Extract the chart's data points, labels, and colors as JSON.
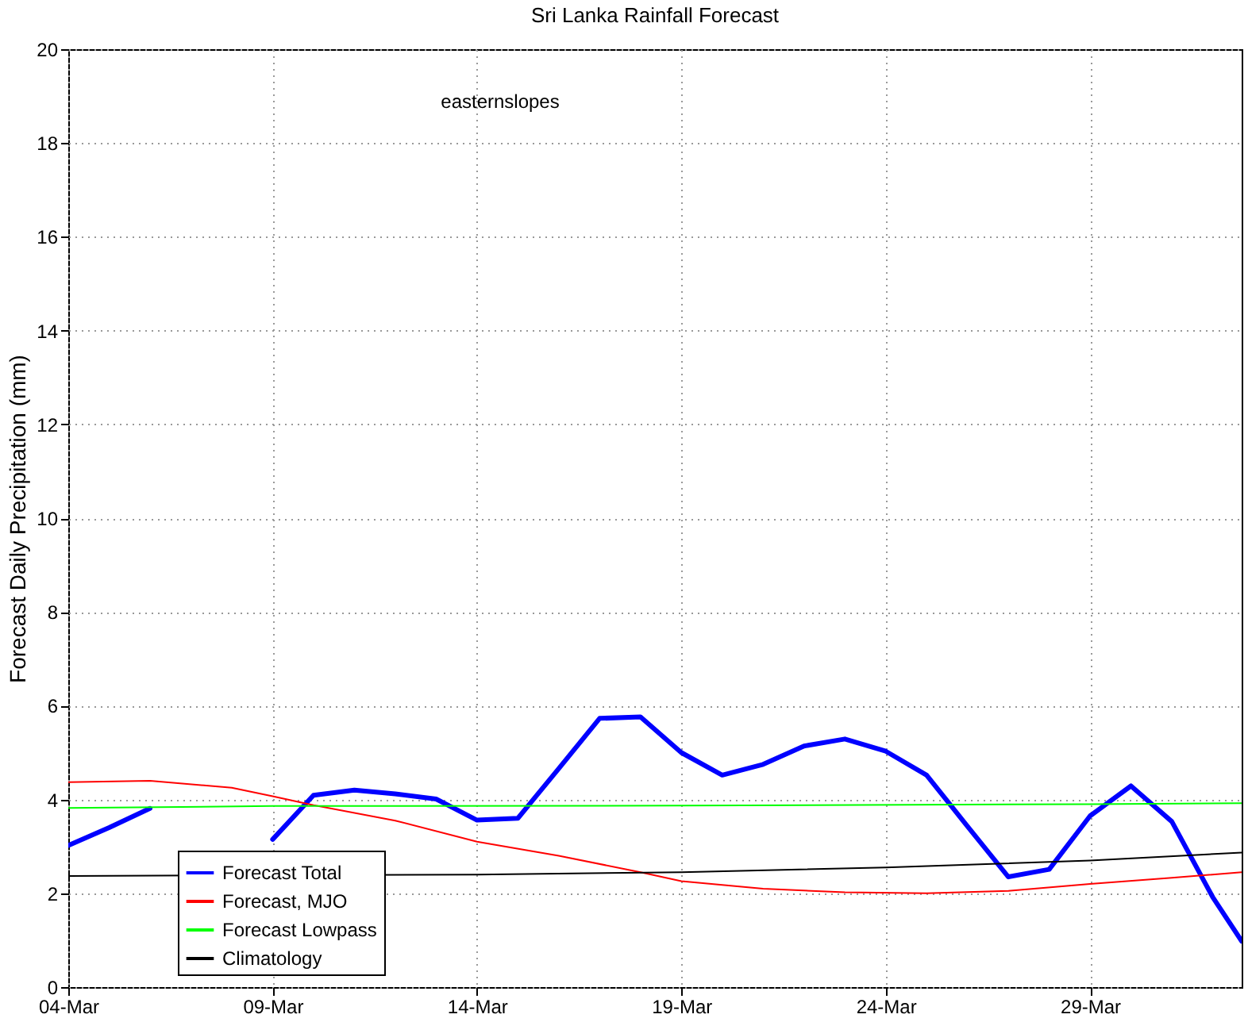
{
  "chart_data": {
    "type": "line",
    "title": "Sri Lanka Rainfall Forecast",
    "ylabel": "Forecast Daily Precipitation (mm)",
    "annotations": [
      "easternslopes"
    ],
    "xlim": [
      "--03-04",
      "--04-01T17:00"
    ],
    "xticks": [
      {
        "value": "--03-04",
        "label": "04-Mar"
      },
      {
        "value": "--03-09",
        "label": "09-Mar"
      },
      {
        "value": "--03-14",
        "label": "14-Mar"
      },
      {
        "value": "--03-19",
        "label": "19-Mar"
      },
      {
        "value": "--03-24",
        "label": "24-Mar"
      },
      {
        "value": "--03-29",
        "label": "29-Mar"
      }
    ],
    "ylim": [
      0,
      20
    ],
    "yticks": [
      0,
      2,
      4,
      6,
      8,
      10,
      12,
      14,
      16,
      18,
      20
    ],
    "grid": true,
    "legend": "bottom left",
    "line_style": "solid",
    "marker": "none",
    "series": [
      {
        "name": "Forecast Total",
        "color": "#0000ff",
        "x": [
          "--03-04",
          "--03-05",
          "--03-06",
          "--03-07",
          "--03-08",
          "--03-09",
          "--03-10",
          "--03-11",
          "--03-12",
          "--03-13",
          "--03-14",
          "--03-15",
          "--03-16",
          "--03-17",
          "--03-18",
          "--03-19",
          "--03-20",
          "--03-21",
          "--03-22",
          "--03-23",
          "--03-24",
          "--03-25",
          "--03-26",
          "--03-27",
          "--03-28",
          "--03-29",
          "--03-30",
          "--03-31",
          "--04-01",
          "--04-01T17:00"
        ],
        "values": [
          3.02,
          3.4,
          3.81,
          null,
          null,
          3.15,
          4.09,
          4.2,
          4.12,
          4.01,
          3.56,
          3.6,
          4.66,
          5.73,
          5.76,
          5.0,
          4.52,
          4.75,
          5.14,
          5.29,
          5.03,
          4.52,
          3.43,
          2.35,
          2.51,
          3.65,
          4.29,
          3.53,
          1.92,
          0.98
        ]
      },
      {
        "name": "Forecast, MJO",
        "color": "#ff0000",
        "x": [
          "--03-04",
          "--03-06",
          "--03-08",
          "--03-09",
          "--03-10",
          "--03-12",
          "--03-14",
          "--03-16",
          "--03-18",
          "--03-19",
          "--03-21",
          "--03-23",
          "--03-25",
          "--03-27",
          "--03-29",
          "--03-31",
          "--04-01T17:00"
        ],
        "values": [
          4.37,
          4.4,
          4.25,
          4.07,
          3.88,
          3.55,
          3.1,
          2.8,
          2.45,
          2.26,
          2.1,
          2.02,
          2.0,
          2.05,
          2.2,
          2.33,
          2.45
        ]
      },
      {
        "name": "Forecast Lowpass",
        "color": "#00ff00",
        "x": [
          "--03-04",
          "--03-09",
          "--03-19",
          "--03-29",
          "--04-01T17:00"
        ],
        "values": [
          3.82,
          3.86,
          3.87,
          3.9,
          3.92
        ]
      },
      {
        "name": "Climatology",
        "color": "#000000",
        "x": [
          "--03-04",
          "--03-14",
          "--03-19",
          "--03-24",
          "--03-29",
          "--04-01T17:00"
        ],
        "values": [
          2.37,
          2.4,
          2.45,
          2.55,
          2.7,
          2.87
        ]
      }
    ]
  }
}
